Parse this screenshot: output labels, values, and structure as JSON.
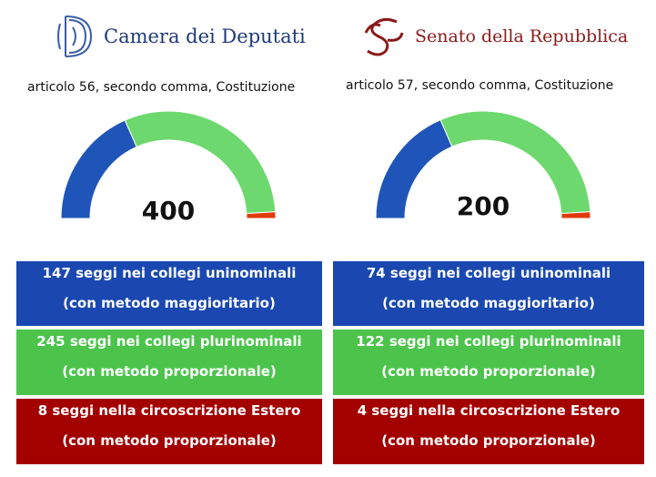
{
  "colors": {
    "blue": "#1a48b0",
    "green": "#4cc44c",
    "red": "#a30000",
    "arc_red": "#e03a0a",
    "arc_green": "#6dd86d",
    "arc_blue": "#1f55b8"
  },
  "camera": {
    "logo_text": "Camera dei Deputati",
    "article": "articolo 56, secondo comma, Costituzione",
    "cells": [
      {
        "line1": "147 seggi nei collegi uninominali",
        "line2": "(con metodo maggioritario)"
      },
      {
        "line1": "245 seggi nei collegi plurinominali",
        "line2": "(con metodo proporzionale)"
      },
      {
        "line1": "8 seggi nella circoscrizione Estero",
        "line2": "(con metodo proporzionale)"
      }
    ]
  },
  "senato": {
    "logo_text": "Senato della Repubblica",
    "article": "articolo 57, secondo comma, Costituzione",
    "cells": [
      {
        "line1": "74 seggi nei collegi uninominali",
        "line2": "(con metodo maggioritario)"
      },
      {
        "line1": "122 seggi nei collegi plurinominali",
        "line2": "(con metodo proporzionale)"
      },
      {
        "line1": "4 seggi nella circoscrizione Estero",
        "line2": "(con metodo proporzionale)"
      }
    ]
  },
  "chart_data": [
    {
      "type": "pie",
      "total_label": "400",
      "categories": [
        "uninominali",
        "plurinominali",
        "Estero"
      ],
      "values": [
        147,
        245,
        8
      ]
    },
    {
      "type": "pie",
      "total_label": "200",
      "categories": [
        "uninominali",
        "plurinominali",
        "Estero"
      ],
      "values": [
        74,
        122,
        4
      ]
    }
  ]
}
